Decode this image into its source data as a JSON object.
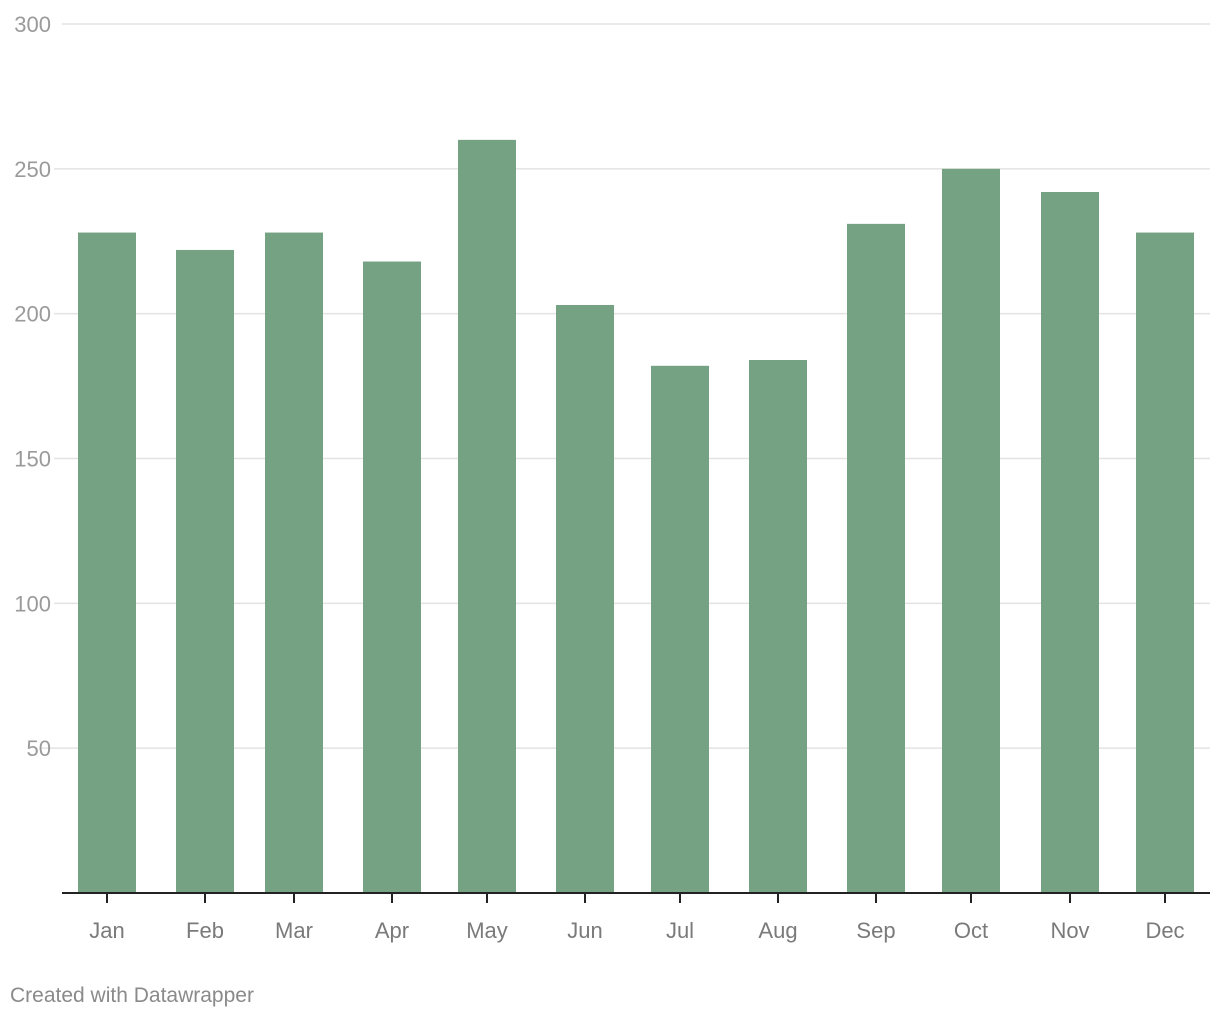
{
  "footer": {
    "credit": "Created with Datawrapper"
  },
  "chart_data": {
    "type": "bar",
    "title": "",
    "xlabel": "",
    "ylabel": "",
    "categories": [
      "Jan",
      "Feb",
      "Mar",
      "Apr",
      "May",
      "Jun",
      "Jul",
      "Aug",
      "Sep",
      "Oct",
      "Nov",
      "Dec"
    ],
    "values": [
      228,
      222,
      228,
      218,
      260,
      203,
      182,
      184,
      231,
      250,
      242,
      228
    ],
    "ylim": [
      0,
      300
    ],
    "yticks": [
      50,
      100,
      150,
      200,
      250,
      300
    ],
    "grid": true,
    "legend": "none",
    "colors": {
      "bar": "#74a283",
      "grid": "#e3e3e3",
      "axis": "#222222",
      "tick_label": "#9a9a9a",
      "category_label": "#7a7a7a"
    }
  }
}
